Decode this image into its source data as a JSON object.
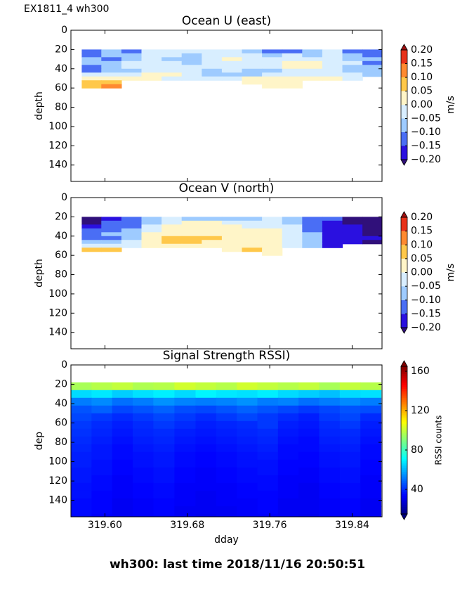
{
  "title": "EX1811_4 wh300",
  "footer": "wh300: last time 2018/11/16 20:50:51",
  "chart_data": [
    {
      "type": "contour",
      "title": "Ocean U (east)",
      "ylabel": "depth",
      "colorbar_label": "m/s",
      "x": [
        319.587,
        319.606,
        319.626,
        319.645,
        319.665,
        319.684,
        319.704,
        319.723,
        319.743,
        319.762,
        319.782,
        319.801,
        319.821,
        319.84,
        319.86
      ],
      "y": [
        22,
        26,
        30,
        34,
        38,
        42,
        46,
        50,
        54,
        58
      ],
      "z": [
        [
          -0.12,
          -0.08,
          -0.12,
          -0.03,
          -0.03,
          -0.03,
          -0.03,
          -0.03,
          -0.08,
          -0.12,
          -0.12,
          -0.08,
          -0.03,
          -0.12,
          -0.12
        ],
        [
          -0.12,
          -0.08,
          -0.08,
          -0.03,
          -0.03,
          -0.08,
          -0.03,
          -0.03,
          -0.03,
          -0.08,
          -0.03,
          -0.08,
          -0.03,
          -0.08,
          -0.12
        ],
        [
          -0.08,
          -0.12,
          -0.08,
          -0.03,
          -0.08,
          -0.08,
          -0.03,
          0.03,
          -0.03,
          -0.03,
          -0.03,
          -0.03,
          -0.03,
          -0.08,
          -0.08
        ],
        [
          -0.08,
          -0.08,
          -0.03,
          -0.03,
          -0.03,
          -0.08,
          -0.03,
          -0.03,
          -0.03,
          -0.03,
          0.03,
          0.03,
          -0.03,
          -0.03,
          -0.12
        ],
        [
          -0.12,
          -0.08,
          -0.03,
          -0.03,
          -0.03,
          -0.03,
          -0.03,
          -0.03,
          -0.03,
          -0.03,
          0.03,
          0.03,
          -0.03,
          -0.08,
          -0.08
        ],
        [
          -0.12,
          -0.08,
          -0.08,
          -0.03,
          -0.03,
          -0.03,
          -0.08,
          -0.03,
          -0.08,
          -0.08,
          -0.03,
          -0.03,
          -0.03,
          -0.08,
          -0.08
        ],
        [
          -0.03,
          -0.03,
          -0.03,
          0.03,
          0.03,
          -0.03,
          -0.08,
          -0.08,
          -0.08,
          -0.03,
          -0.03,
          -0.03,
          -0.03,
          -0.03,
          -0.08
        ],
        [
          0.03,
          0.03,
          0.03,
          0.03,
          -0.03,
          -0.03,
          -0.03,
          -0.03,
          0.03,
          0.03,
          0.03,
          0.03,
          0.03,
          -0.03,
          null
        ],
        [
          0.07,
          0.07,
          null,
          null,
          null,
          null,
          null,
          null,
          0.03,
          0.03,
          0.03,
          null,
          null,
          null,
          null
        ],
        [
          0.07,
          0.12,
          null,
          null,
          null,
          null,
          null,
          null,
          null,
          0.03,
          0.03,
          null,
          null,
          null,
          null
        ]
      ],
      "levels": [
        -0.2,
        -0.15,
        -0.1,
        -0.05,
        0,
        0.05,
        0.1,
        0.15,
        0.2
      ],
      "colors": [
        "#2a10e0",
        "#4a6ef5",
        "#9ecbff",
        "#d8eeff",
        "#fff5c8",
        "#ffc84a",
        "#ff8a30",
        "#e8321a"
      ],
      "under_color": "#30107a",
      "over_color": "#a01010",
      "cbar_ticks": [
        {
          "value": 0.2,
          "label": "0.20"
        },
        {
          "value": 0.15,
          "label": "0.15"
        },
        {
          "value": 0.1,
          "label": "0.10"
        },
        {
          "value": 0.05,
          "label": "0.05"
        },
        {
          "value": 0,
          "label": "0.00"
        },
        {
          "value": -0.05,
          "label": "−0.05"
        },
        {
          "value": -0.1,
          "label": "−0.10"
        },
        {
          "value": -0.15,
          "label": "−0.15"
        },
        {
          "value": -0.2,
          "label": "−0.20"
        }
      ],
      "xlim": [
        319.567,
        319.869
      ],
      "ylim": [
        0,
        157
      ],
      "y_inverted": true,
      "xticks": [
        319.6,
        319.68,
        319.76,
        319.84
      ],
      "yticks": [
        0,
        20,
        40,
        60,
        80,
        100,
        120,
        140
      ]
    },
    {
      "type": "contour",
      "title": "Ocean V (north)",
      "ylabel": "depth",
      "colorbar_label": "m/s",
      "x": [
        319.587,
        319.606,
        319.626,
        319.645,
        319.665,
        319.684,
        319.704,
        319.723,
        319.743,
        319.762,
        319.782,
        319.801,
        319.821,
        319.84,
        319.86
      ],
      "y": [
        22,
        26,
        30,
        34,
        38,
        42,
        46,
        50,
        54,
        58
      ],
      "z": [
        [
          -0.22,
          -0.18,
          -0.12,
          -0.08,
          -0.03,
          -0.08,
          -0.08,
          -0.08,
          -0.08,
          -0.03,
          -0.08,
          -0.12,
          -0.12,
          -0.22,
          -0.22
        ],
        [
          -0.22,
          -0.12,
          -0.12,
          -0.08,
          -0.03,
          0.03,
          0.03,
          -0.03,
          -0.03,
          -0.03,
          -0.08,
          -0.12,
          -0.18,
          -0.22,
          -0.22
        ],
        [
          -0.18,
          -0.12,
          -0.12,
          -0.03,
          0.03,
          0.03,
          0.03,
          0.03,
          -0.03,
          -0.03,
          -0.03,
          -0.12,
          -0.18,
          -0.18,
          -0.22
        ],
        [
          -0.12,
          -0.12,
          -0.08,
          -0.03,
          0.03,
          0.03,
          0.03,
          0.03,
          0.03,
          0.03,
          -0.03,
          -0.12,
          -0.18,
          -0.18,
          -0.22
        ],
        [
          -0.12,
          -0.08,
          -0.08,
          0.03,
          0.03,
          0.03,
          0.03,
          0.03,
          0.03,
          0.03,
          -0.03,
          -0.08,
          -0.18,
          -0.18,
          -0.22
        ],
        [
          -0.12,
          -0.12,
          -0.08,
          0.03,
          0.07,
          0.07,
          0.07,
          0.03,
          0.03,
          0.03,
          -0.03,
          -0.08,
          -0.18,
          -0.18,
          -0.18
        ],
        [
          -0.08,
          -0.08,
          -0.03,
          0.03,
          0.07,
          0.07,
          0.03,
          0.03,
          0.03,
          0.03,
          -0.03,
          -0.08,
          -0.18,
          -0.18,
          -0.22
        ],
        [
          -0.03,
          -0.03,
          -0.03,
          0.03,
          0.03,
          0.03,
          0.03,
          0.03,
          0.03,
          0.03,
          -0.03,
          -0.08,
          -0.18,
          null,
          null
        ],
        [
          0.07,
          0.07,
          null,
          null,
          null,
          null,
          null,
          0.03,
          0.07,
          0.03,
          null,
          null,
          null,
          null,
          null
        ],
        [
          null,
          null,
          null,
          null,
          null,
          null,
          null,
          null,
          null,
          0.03,
          null,
          null,
          null,
          null,
          null
        ]
      ],
      "levels": [
        -0.2,
        -0.15,
        -0.1,
        -0.05,
        0,
        0.05,
        0.1,
        0.15,
        0.2
      ],
      "colors": [
        "#2a10e0",
        "#4a6ef5",
        "#9ecbff",
        "#d8eeff",
        "#fff5c8",
        "#ffc84a",
        "#ff8a30",
        "#e8321a"
      ],
      "under_color": "#30107a",
      "over_color": "#a01010",
      "cbar_ticks": [
        {
          "value": 0.2,
          "label": "0.20"
        },
        {
          "value": 0.15,
          "label": "0.15"
        },
        {
          "value": 0.1,
          "label": "0.10"
        },
        {
          "value": 0.05,
          "label": "0.05"
        },
        {
          "value": 0,
          "label": "0.00"
        },
        {
          "value": -0.05,
          "label": "−0.05"
        },
        {
          "value": -0.1,
          "label": "−0.10"
        },
        {
          "value": -0.15,
          "label": "−0.15"
        },
        {
          "value": -0.2,
          "label": "−0.20"
        }
      ],
      "xlim": [
        319.567,
        319.869
      ],
      "ylim": [
        0,
        157
      ],
      "y_inverted": true,
      "xticks": [
        319.6,
        319.68,
        319.76,
        319.84
      ],
      "yticks": [
        0,
        20,
        40,
        60,
        80,
        100,
        120,
        140
      ]
    },
    {
      "type": "heatmap",
      "title": "Signal Strength RSSI)",
      "ylabel": "dep",
      "xlabel": "dday",
      "colorbar_label": "RSSI counts",
      "colormap": "jet",
      "x": [
        319.577,
        319.597,
        319.617,
        319.637,
        319.657,
        319.678,
        319.698,
        319.718,
        319.738,
        319.758,
        319.778,
        319.798,
        319.818,
        319.838,
        319.858
      ],
      "y": [
        22,
        30,
        38,
        46,
        54,
        62,
        70,
        78,
        86,
        94,
        102,
        110,
        118,
        126,
        134,
        142,
        150,
        158
      ],
      "z": [
        [
          96,
          98,
          100,
          97,
          98,
          102,
          100,
          98,
          102,
          100,
          98,
          100,
          96,
          100,
          98
        ],
        [
          66,
          68,
          64,
          67,
          69,
          66,
          70,
          68,
          67,
          69,
          66,
          64,
          62,
          66,
          67
        ],
        [
          52,
          54,
          50,
          52,
          55,
          53,
          52,
          53,
          55,
          52,
          53,
          50,
          52,
          54,
          52
        ],
        [
          46,
          48,
          44,
          46,
          48,
          45,
          44,
          46,
          48,
          46,
          44,
          42,
          44,
          46,
          45
        ],
        [
          44,
          42,
          40,
          42,
          44,
          42,
          40,
          42,
          44,
          42,
          40,
          38,
          42,
          44,
          40
        ],
        [
          42,
          40,
          38,
          40,
          42,
          40,
          38,
          39,
          40,
          42,
          38,
          37,
          40,
          42,
          38
        ],
        [
          41,
          39,
          37,
          39,
          40,
          38,
          37,
          38,
          39,
          40,
          37,
          36,
          39,
          40,
          37
        ],
        [
          40,
          38,
          36,
          38,
          39,
          37,
          36,
          37,
          38,
          39,
          36,
          35,
          38,
          39,
          36
        ],
        [
          39,
          37,
          35,
          37,
          38,
          36,
          35,
          36,
          37,
          38,
          35,
          35,
          37,
          38,
          35
        ],
        [
          38,
          37,
          35,
          36,
          37,
          35,
          34,
          35,
          36,
          37,
          35,
          34,
          36,
          37,
          35
        ],
        [
          38,
          36,
          34,
          36,
          37,
          35,
          34,
          35,
          36,
          36,
          34,
          34,
          36,
          37,
          34
        ],
        [
          37,
          36,
          34,
          35,
          36,
          34,
          33,
          34,
          35,
          36,
          34,
          33,
          35,
          36,
          34
        ],
        [
          37,
          35,
          33,
          35,
          36,
          34,
          33,
          34,
          35,
          35,
          33,
          33,
          35,
          36,
          33
        ],
        [
          36,
          35,
          33,
          34,
          35,
          33,
          33,
          33,
          34,
          35,
          33,
          32,
          34,
          35,
          33
        ],
        [
          36,
          34,
          33,
          34,
          35,
          33,
          32,
          33,
          34,
          34,
          33,
          32,
          34,
          35,
          33
        ],
        [
          35,
          34,
          32,
          33,
          34,
          33,
          32,
          33,
          33,
          34,
          32,
          32,
          33,
          34,
          32
        ],
        [
          35,
          34,
          32,
          33,
          34,
          32,
          32,
          32,
          33,
          34,
          32,
          32,
          33,
          34,
          32
        ],
        [
          35,
          33,
          32,
          33,
          34,
          32,
          31,
          32,
          33,
          33,
          32,
          31,
          33,
          34,
          32
        ]
      ],
      "clim": [
        15,
        165
      ],
      "cbar_ticks": [
        40,
        80,
        120,
        160
      ],
      "xlim": [
        319.567,
        319.869
      ],
      "ylim": [
        0,
        157
      ],
      "y_inverted": true,
      "xticks": [
        {
          "value": 319.6,
          "label": "319.60"
        },
        319.68,
        319.76,
        319.84
      ],
      "yticks": [
        0,
        20,
        40,
        60,
        80,
        100,
        120,
        140
      ]
    }
  ]
}
